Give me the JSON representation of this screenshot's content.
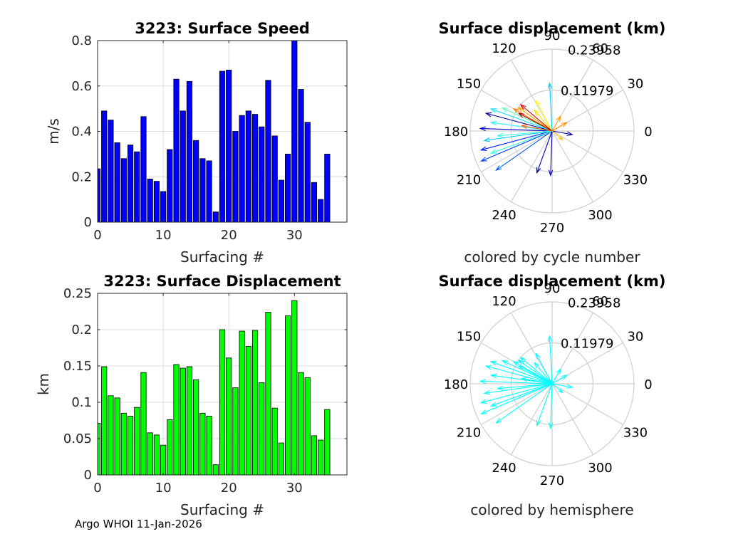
{
  "footer": {
    "text": "Argo WHOI 11-Jan-2026"
  },
  "chart_data": [
    {
      "id": "speed",
      "type": "bar",
      "title": "3223: Surface Speed",
      "xlabel": "Surfacing #",
      "ylabel": "m/s",
      "xlim": [
        0,
        38
      ],
      "ylim": [
        0,
        0.8
      ],
      "xticks": [
        0,
        10,
        20,
        30
      ],
      "yticks": [
        0,
        0.2,
        0.4,
        0.6,
        0.8
      ],
      "ytick_labels": [
        "0",
        "0.2",
        "0.4",
        "0.6",
        "0.8"
      ],
      "bar_color": "#0000ff",
      "x": [
        0,
        1,
        2,
        3,
        4,
        5,
        6,
        7,
        8,
        9,
        10,
        11,
        12,
        13,
        14,
        15,
        16,
        17,
        18,
        19,
        20,
        21,
        22,
        23,
        24,
        25,
        26,
        27,
        28,
        29,
        30,
        31,
        32,
        33,
        34,
        35
      ],
      "values": [
        0.235,
        0.49,
        0.45,
        0.35,
        0.28,
        0.34,
        0.31,
        0.465,
        0.19,
        0.18,
        0.135,
        0.32,
        0.63,
        0.49,
        0.62,
        0.36,
        0.28,
        0.27,
        0.045,
        0.665,
        0.67,
        0.4,
        0.47,
        0.49,
        0.475,
        0.42,
        0.625,
        0.38,
        0.185,
        0.3,
        0.8,
        0.585,
        0.44,
        0.175,
        0.1,
        0.3
      ]
    },
    {
      "id": "displacement",
      "type": "bar",
      "title": "3223: Surface Displacement",
      "xlabel": "Surfacing #",
      "ylabel": "km",
      "xlim": [
        0,
        38
      ],
      "ylim": [
        0,
        0.25
      ],
      "xticks": [
        0,
        10,
        20,
        30
      ],
      "yticks": [
        0,
        0.05,
        0.1,
        0.15,
        0.2,
        0.25
      ],
      "ytick_labels": [
        "0",
        "0.05",
        "0.1",
        "0.15",
        "0.2",
        "0.25"
      ],
      "bar_color": "#00ff00",
      "x": [
        0,
        1,
        2,
        3,
        4,
        5,
        6,
        7,
        8,
        9,
        10,
        11,
        12,
        13,
        14,
        15,
        16,
        17,
        18,
        19,
        20,
        21,
        22,
        23,
        24,
        25,
        26,
        27,
        28,
        29,
        30,
        31,
        32,
        33,
        34,
        35
      ],
      "values": [
        0.071,
        0.149,
        0.109,
        0.106,
        0.085,
        0.081,
        0.093,
        0.141,
        0.058,
        0.055,
        0.041,
        0.076,
        0.152,
        0.147,
        0.149,
        0.131,
        0.085,
        0.081,
        0.014,
        0.2,
        0.161,
        0.12,
        0.198,
        0.177,
        0.199,
        0.127,
        0.224,
        0.092,
        0.044,
        0.219,
        0.24,
        0.141,
        0.134,
        0.054,
        0.048,
        0.09
      ]
    },
    {
      "id": "polar-cycle",
      "type": "polar-quiver",
      "title": "Surface displacement (km)",
      "subtitle": "colored by cycle number",
      "rmax": 0.23958,
      "rings": [
        0.11979,
        0.23958
      ],
      "ring_labels": [
        "0.11979",
        "0.23958"
      ],
      "angle_labels": [
        "0",
        "30",
        "60",
        "90",
        "120",
        "150",
        "180",
        "210",
        "240",
        "270",
        "300",
        "330"
      ],
      "vectors": [
        {
          "angle": 165,
          "r": 0.2,
          "color": "#0000a0"
        },
        {
          "angle": 178,
          "r": 0.21,
          "color": "#0000cc"
        },
        {
          "angle": 195,
          "r": 0.215,
          "color": "#0020ff"
        },
        {
          "angle": 203,
          "r": 0.225,
          "color": "#0040ff"
        },
        {
          "angle": 215,
          "r": 0.2,
          "color": "#0060ff"
        },
        {
          "angle": 250,
          "r": 0.13,
          "color": "#0000b0"
        },
        {
          "angle": 268,
          "r": 0.13,
          "color": "#0000b0"
        },
        {
          "angle": 93,
          "r": 0.14,
          "color": "#00d0ff"
        },
        {
          "angle": 160,
          "r": 0.19,
          "color": "#20e0ff"
        },
        {
          "angle": 172,
          "r": 0.18,
          "color": "#30f0ff"
        },
        {
          "angle": 188,
          "r": 0.2,
          "color": "#00c8ff"
        },
        {
          "angle": 200,
          "r": 0.19,
          "color": "#40ffe0"
        },
        {
          "angle": 185,
          "r": 0.16,
          "color": "#40ffe0"
        },
        {
          "angle": 155,
          "r": 0.16,
          "color": "#60ffc0"
        },
        {
          "angle": 118,
          "r": 0.1,
          "color": "#ffff00"
        },
        {
          "angle": 130,
          "r": 0.08,
          "color": "#ffe000"
        },
        {
          "angle": 145,
          "r": 0.12,
          "color": "#ffa000"
        },
        {
          "angle": 150,
          "r": 0.13,
          "color": "#ff8000"
        },
        {
          "angle": 140,
          "r": 0.12,
          "color": "#e00000"
        },
        {
          "angle": 152,
          "r": 0.11,
          "color": "#a00000"
        },
        {
          "angle": 170,
          "r": 0.09,
          "color": "#ff6000"
        },
        {
          "angle": 60,
          "r": 0.05,
          "color": "#ffa000"
        },
        {
          "angle": 30,
          "r": 0.05,
          "color": "#ff9000"
        },
        {
          "angle": 350,
          "r": 0.06,
          "color": "#0000a0"
        },
        {
          "angle": 320,
          "r": 0.04,
          "color": "#ffc000"
        }
      ]
    },
    {
      "id": "polar-hemisphere",
      "type": "polar-quiver",
      "title": "Surface displacement (km)",
      "subtitle": "colored by hemisphere",
      "rmax": 0.23958,
      "rings": [
        0.11979,
        0.23958
      ],
      "ring_labels": [
        "0.11979",
        "0.23958"
      ],
      "angle_labels": [
        "0",
        "30",
        "60",
        "90",
        "120",
        "150",
        "180",
        "210",
        "240",
        "270",
        "300",
        "330"
      ],
      "vector_color": "#00ffff",
      "vectors": [
        {
          "angle": 165,
          "r": 0.2
        },
        {
          "angle": 178,
          "r": 0.21
        },
        {
          "angle": 195,
          "r": 0.215
        },
        {
          "angle": 203,
          "r": 0.225
        },
        {
          "angle": 215,
          "r": 0.2
        },
        {
          "angle": 250,
          "r": 0.13
        },
        {
          "angle": 268,
          "r": 0.13
        },
        {
          "angle": 93,
          "r": 0.14
        },
        {
          "angle": 160,
          "r": 0.19
        },
        {
          "angle": 172,
          "r": 0.18
        },
        {
          "angle": 188,
          "r": 0.2
        },
        {
          "angle": 200,
          "r": 0.19
        },
        {
          "angle": 185,
          "r": 0.16
        },
        {
          "angle": 155,
          "r": 0.16
        },
        {
          "angle": 118,
          "r": 0.1
        },
        {
          "angle": 130,
          "r": 0.08
        },
        {
          "angle": 145,
          "r": 0.12
        },
        {
          "angle": 150,
          "r": 0.13
        },
        {
          "angle": 140,
          "r": 0.12
        },
        {
          "angle": 152,
          "r": 0.11
        },
        {
          "angle": 170,
          "r": 0.09
        },
        {
          "angle": 60,
          "r": 0.05
        },
        {
          "angle": 30,
          "r": 0.05
        },
        {
          "angle": 350,
          "r": 0.06
        },
        {
          "angle": 320,
          "r": 0.04
        }
      ]
    }
  ]
}
